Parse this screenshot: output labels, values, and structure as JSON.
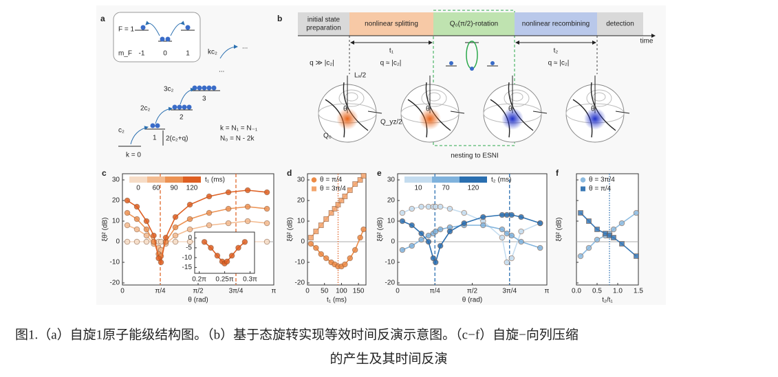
{
  "panel_a": {
    "letter": "a",
    "f_label": "F = 1",
    "mf_label": "m_F",
    "mf_values": [
      "-1",
      "0",
      "1"
    ],
    "kc2": "kc₂",
    "dots": "...",
    "dots2": "...",
    "ladder": [
      {
        "energy": "3c₂",
        "k": "3"
      },
      {
        "energy": "2c₂",
        "k": "2"
      },
      {
        "energy": "c₂",
        "k": "1"
      }
    ],
    "k0": "k = 0",
    "gap": "2(c₂+q)",
    "eq1": "k = N₁ = N₋₁",
    "eq2": "N₀ = N - 2k"
  },
  "panel_b": {
    "letter": "b",
    "stages": [
      {
        "lines": [
          "initial state",
          "preparation"
        ]
      },
      {
        "lines": [
          "nonlinear splitting"
        ]
      },
      {
        "lines": [
          "Q₀(π/2)-rotation"
        ]
      },
      {
        "lines": [
          "nonlinear recombining"
        ]
      },
      {
        "lines": [
          "detection"
        ]
      }
    ],
    "time": "time",
    "t1": "t₁",
    "t2": "t₂",
    "q1": "q ≫ |c₂|",
    "q2": "q ≈ |c₂|",
    "q3": "q ≈ |c₂|",
    "lx": "Lₓ/2",
    "qyz": "Q_yz/2",
    "q0": "Q₀",
    "theta": "θ",
    "nesting": "nesting to ESNI"
  },
  "chart_data": [
    {
      "type": "scatter",
      "panel": "c",
      "xlabel": "θ (rad)",
      "ylabel": "ξθ² (dB)",
      "legend_title": "t₁ (ms)",
      "legend_style": "colorbar",
      "xlim": [
        0,
        3.1416
      ],
      "xticks": [
        0,
        {
          "value": 0.7854,
          "label": "π/4"
        },
        {
          "value": 1.5708,
          "label": "π/2"
        },
        {
          "value": 2.3562,
          "label": "3π/4"
        },
        {
          "value": 3.1416,
          "label": "π"
        }
      ],
      "ylim": [
        -21,
        33
      ],
      "yticks": [
        -20,
        -10,
        0,
        10,
        20,
        30
      ],
      "hline": 0,
      "vlines": [
        0.7854,
        2.3562
      ],
      "vline_color": "#e0662a",
      "vline_dash": "dash",
      "series": [
        {
          "name": "0",
          "color": "#f6dcc6",
          "marker": "circle",
          "x": [
            0.1,
            0.3,
            0.5,
            0.65,
            0.75,
            0.8,
            0.9,
            1.1,
            1.4,
            1.8,
            2.2,
            2.6,
            3.0
          ],
          "values": [
            0,
            0,
            0,
            0,
            0,
            0,
            0,
            0,
            0,
            0,
            0,
            0,
            0
          ]
        },
        {
          "name": "60",
          "color": "#f3bb90",
          "marker": "circle",
          "x": [
            0.1,
            0.3,
            0.5,
            0.65,
            0.75,
            0.8,
            0.9,
            1.1,
            1.4,
            1.8,
            2.2,
            2.6,
            3.0
          ],
          "values": [
            8,
            6,
            3,
            -1,
            -3,
            -4,
            -1,
            3,
            6,
            8,
            9,
            10,
            9
          ]
        },
        {
          "name": "90",
          "color": "#ec9253",
          "marker": "circle",
          "x": [
            0.1,
            0.3,
            0.5,
            0.65,
            0.75,
            0.8,
            0.9,
            1.1,
            1.4,
            1.8,
            2.2,
            2.6,
            3.0
          ],
          "values": [
            14,
            11,
            6,
            0,
            -6,
            -7,
            0,
            7,
            11,
            14,
            16,
            17,
            16
          ]
        },
        {
          "name": "120",
          "color": "#de5f22",
          "marker": "circle",
          "x": [
            0.1,
            0.3,
            0.5,
            0.65,
            0.75,
            0.8,
            0.9,
            1.1,
            1.4,
            1.8,
            2.2,
            2.6,
            3.0
          ],
          "values": [
            20,
            17,
            10,
            3,
            -8,
            -10,
            2,
            12,
            18,
            22,
            24,
            25,
            24
          ]
        }
      ]
    },
    {
      "type": "scatter",
      "inset": true,
      "xlim": [
        0.6,
        0.97
      ],
      "xticks": [
        {
          "value": 0.6283,
          "label": "0.2π"
        },
        {
          "value": 0.7854,
          "label": "0.25π"
        },
        {
          "value": 0.9425,
          "label": "0.3π"
        }
      ],
      "ylim": [
        -18,
        3
      ],
      "yticks": [
        -15,
        -10,
        -5,
        0
      ],
      "series": [
        {
          "color": "#de5f22",
          "marker": "circle",
          "x": [
            0.66,
            0.7,
            0.74,
            0.77,
            0.785,
            0.8,
            0.83,
            0.87,
            0.91
          ],
          "values": [
            -2,
            -5,
            -9,
            -12,
            -13,
            -12,
            -9,
            -5,
            -2
          ]
        }
      ]
    },
    {
      "type": "scatter",
      "panel": "d",
      "xlabel": "t₁ (ms)",
      "ylabel": "ξθ² (dB)",
      "legend_style": "markers",
      "xlim": [
        0,
        172
      ],
      "xticks": [
        0,
        50,
        100,
        150
      ],
      "ylim": [
        -21,
        33
      ],
      "yticks": [
        -20,
        -10,
        0,
        10,
        20,
        30
      ],
      "hline": 0,
      "vlines": [
        90
      ],
      "vline_color": "#e0662a",
      "vline_dash": "dot",
      "series": [
        {
          "name": "θ = π/4",
          "color": "#ec8a45",
          "marker": "circle",
          "x": [
            10,
            25,
            40,
            55,
            70,
            80,
            90,
            100,
            110,
            125,
            140,
            155,
            165
          ],
          "values": [
            -1,
            -3,
            -6,
            -8,
            -10,
            -11,
            -12,
            -12,
            -11,
            -8,
            -4,
            2,
            6
          ]
        },
        {
          "name": "θ = 3π/4",
          "color": "#f3a56e",
          "marker": "square",
          "x": [
            10,
            25,
            40,
            55,
            70,
            80,
            90,
            100,
            110,
            125,
            140,
            155,
            165
          ],
          "values": [
            2,
            5,
            8,
            11,
            14,
            16,
            18,
            20,
            22,
            25,
            28,
            30,
            32
          ]
        }
      ]
    },
    {
      "type": "scatter",
      "panel": "e",
      "xlabel": "θ (rad)",
      "ylabel": "ξθ² (dB)",
      "legend_title": "t₂ (ms)",
      "legend_style": "colorbar",
      "xlim": [
        0,
        3.1416
      ],
      "xticks": [
        0,
        {
          "value": 0.7854,
          "label": "π/4"
        },
        {
          "value": 1.5708,
          "label": "π/2"
        },
        {
          "value": 2.3562,
          "label": "3π/4"
        },
        {
          "value": 3.1416,
          "label": "π"
        }
      ],
      "ylim": [
        -21,
        33
      ],
      "yticks": [
        -20,
        -10,
        0,
        10,
        20,
        30
      ],
      "hline": 0,
      "vlines": [
        0.7854,
        2.3562
      ],
      "vline_color": "#2a6fb0",
      "vline_dash": "dash",
      "series": [
        {
          "name": "10",
          "color": "#c4dcef",
          "marker": "circle",
          "x": [
            0.1,
            0.3,
            0.5,
            0.65,
            0.75,
            0.8,
            0.9,
            1.1,
            1.4,
            1.8,
            2.2,
            2.3,
            2.4,
            2.6,
            3.0
          ],
          "values": [
            14,
            16,
            17,
            17,
            17,
            17,
            17,
            16,
            14,
            10,
            2,
            -10,
            -8,
            5,
            9
          ]
        },
        {
          "name": "70",
          "color": "#7fb2dc",
          "marker": "circle",
          "x": [
            0.1,
            0.3,
            0.5,
            0.65,
            0.75,
            0.8,
            0.9,
            1.1,
            1.4,
            1.8,
            2.2,
            2.3,
            2.4,
            2.6,
            3.0
          ],
          "values": [
            -4,
            -2,
            1,
            3,
            4,
            5,
            6,
            7,
            8,
            8,
            6,
            4,
            3,
            0,
            -3
          ]
        },
        {
          "name": "120",
          "color": "#2a6fb0",
          "marker": "circle",
          "x": [
            0.1,
            0.3,
            0.5,
            0.65,
            0.75,
            0.8,
            0.9,
            1.1,
            1.4,
            1.8,
            2.2,
            2.3,
            2.4,
            2.6,
            3.0
          ],
          "values": [
            10,
            8,
            4,
            0,
            -8,
            -10,
            -2,
            5,
            9,
            12,
            13,
            13,
            13,
            12,
            9
          ]
        }
      ]
    },
    {
      "type": "scatter",
      "panel": "f",
      "xlabel": "t₂/t₁",
      "ylabel": "ξθ² (dB)",
      "legend_style": "markers",
      "ytick_labels": false,
      "xlim": [
        0,
        1.5
      ],
      "xticks": [
        {
          "value": 0,
          "label": "0.0"
        },
        0.5,
        {
          "value": 1,
          "label": "1.0"
        },
        1.5
      ],
      "ylim": [
        -21,
        33
      ],
      "yticks": [
        -20,
        -10,
        0,
        10,
        20,
        30
      ],
      "hline": 0,
      "vlines": [
        0.8
      ],
      "vline_color": "#2a6fb0",
      "vline_dash": "dot",
      "series": [
        {
          "name": "θ = 3π/4",
          "color": "#8dbbe0",
          "marker": "circle",
          "x": [
            0.1,
            0.3,
            0.5,
            0.7,
            0.8,
            0.9,
            1.1,
            1.45
          ],
          "values": [
            -7,
            -3,
            1,
            3,
            4,
            6,
            9,
            14
          ]
        },
        {
          "name": "θ = π/4",
          "color": "#3a78b5",
          "marker": "square",
          "x": [
            0.1,
            0.3,
            0.5,
            0.7,
            0.8,
            0.9,
            1.1,
            1.45
          ],
          "values": [
            14,
            10,
            6,
            4,
            3,
            2,
            -1,
            -7
          ]
        }
      ]
    }
  ],
  "caption": {
    "line1": "图1.（a）自旋1原子能级结构图。（b）基于态旋转实现等效时间反演示意图。（c−f）自旋−向列压缩",
    "line2": "的产生及其时间反演"
  }
}
